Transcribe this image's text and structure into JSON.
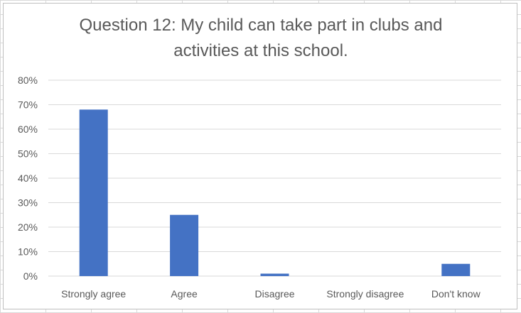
{
  "chart_data": {
    "type": "bar",
    "title": "Question 12: My child can take part in clubs and activities at this school.",
    "title_lines": [
      "Question 12: My child can take part in clubs and",
      "activities at this school."
    ],
    "categories": [
      "Strongly agree",
      "Agree",
      "Disagree",
      "Strongly disagree",
      "Don't know"
    ],
    "values": [
      68,
      25,
      1,
      0,
      5
    ],
    "ylim": [
      0,
      80
    ],
    "yticks": [
      "0%",
      "10%",
      "20%",
      "30%",
      "40%",
      "50%",
      "60%",
      "70%",
      "80%"
    ],
    "grid": true,
    "legend": "none",
    "xlabel": "",
    "ylabel": "",
    "bar_color": "#4472C4",
    "grid_color": "#d9d9d9",
    "text_color": "#595959"
  }
}
